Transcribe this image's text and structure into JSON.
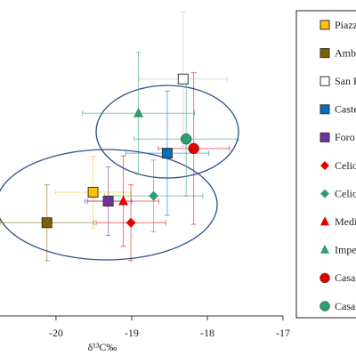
{
  "chart_data": {
    "type": "scatter",
    "x_label": "δ¹³C‰",
    "xlim": [
      -20.74,
      -17
    ],
    "xticks": [
      -20,
      -19,
      -18,
      -17
    ],
    "ylim": [
      6,
      12
    ],
    "legend": "right",
    "series": [
      {
        "name": "Piazza",
        "color": "#ffc000",
        "marker": "square",
        "x": -19.51,
        "y": 8.35,
        "xerr": 0.5,
        "yerr": 0.68
      },
      {
        "name": "Amba",
        "color": "#7f6000",
        "marker": "square",
        "x": -20.12,
        "y": 7.77,
        "xerr": 0.62,
        "yerr": 0.72
      },
      {
        "name": "San P",
        "color": "#ffffff",
        "marker": "square",
        "x": -18.32,
        "y": 10.5,
        "xerr": 0.58,
        "yerr": 1.28
      },
      {
        "name": "Castel",
        "color": "#0070c0",
        "marker": "square",
        "x": -18.53,
        "y": 9.09,
        "xerr": 0.55,
        "yerr": 1.18
      },
      {
        "name": "Foro d",
        "color": "#7030a0",
        "marker": "square",
        "x": -19.31,
        "y": 8.18,
        "xerr": 0.31,
        "yerr": 0.65
      },
      {
        "name": "Celio",
        "color": "#e00000",
        "marker": "diamond",
        "x": -19.01,
        "y": 7.77,
        "xerr": 0.46,
        "yerr": 0.72
      },
      {
        "name": "Celio",
        "color": "#2e9e6e",
        "marker": "diamond",
        "x": -18.71,
        "y": 8.28,
        "xerr": 0.65,
        "yerr": 0.68
      },
      {
        "name": "Medio",
        "color": "#e00000",
        "marker": "triangle",
        "x": -19.11,
        "y": 8.18,
        "xerr": 0.47,
        "yerr": 0.86
      },
      {
        "name": "Imper",
        "color": "#2e9e6e",
        "marker": "triangle",
        "x": -18.91,
        "y": 9.85,
        "xerr": 0.74,
        "yerr": 1.16
      },
      {
        "name": "Casal",
        "color": "#e00000",
        "marker": "circle",
        "x": -18.18,
        "y": 9.18,
        "xerr": 0.47,
        "yerr": 1.44
      },
      {
        "name": "Casal",
        "color": "#2e9e6e",
        "marker": "circle",
        "x": -18.28,
        "y": 9.36,
        "xerr": 0.69,
        "yerr": 1.08
      }
    ]
  }
}
